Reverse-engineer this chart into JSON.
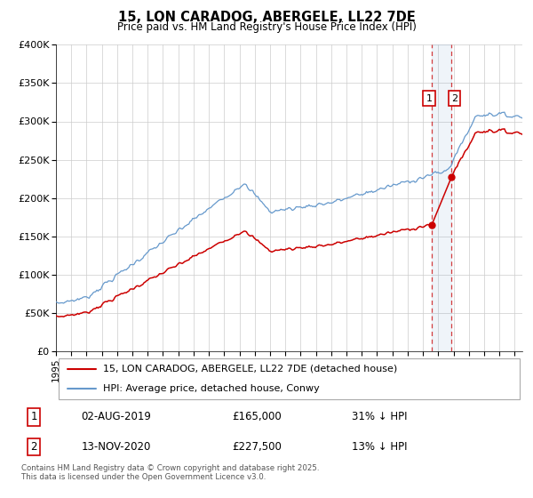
{
  "title": "15, LON CARADOG, ABERGELE, LL22 7DE",
  "subtitle": "Price paid vs. HM Land Registry's House Price Index (HPI)",
  "background_color": "#ffffff",
  "plot_bg_color": "#ffffff",
  "grid_color": "#cccccc",
  "legend1_label": "15, LON CARADOG, ABERGELE, LL22 7DE (detached house)",
  "legend2_label": "HPI: Average price, detached house, Conwy",
  "line1_color": "#cc0000",
  "line2_color": "#6699cc",
  "marker_color": "#cc0000",
  "sale1_date": "02-AUG-2019",
  "sale1_price": 165000,
  "sale1_hpi": "31% ↓ HPI",
  "sale2_date": "13-NOV-2020",
  "sale2_price": 227500,
  "sale2_hpi": "13% ↓ HPI",
  "footnote": "Contains HM Land Registry data © Crown copyright and database right 2025.\nThis data is licensed under the Open Government Licence v3.0.",
  "vline1_x": 2019.58,
  "vline2_x": 2020.87,
  "ylim": [
    0,
    400000
  ],
  "xlim": [
    1995,
    2025.5
  ],
  "yticks": [
    0,
    50000,
    100000,
    150000,
    200000,
    250000,
    300000,
    350000,
    400000
  ],
  "ytick_labels": [
    "£0",
    "£50K",
    "£100K",
    "£150K",
    "£200K",
    "£250K",
    "£300K",
    "£350K",
    "£400K"
  ],
  "xticks": [
    1995,
    1996,
    1997,
    1998,
    1999,
    2000,
    2001,
    2002,
    2003,
    2004,
    2005,
    2006,
    2007,
    2008,
    2009,
    2010,
    2011,
    2012,
    2013,
    2014,
    2015,
    2016,
    2017,
    2018,
    2019,
    2020,
    2021,
    2022,
    2023,
    2024,
    2025
  ],
  "sale1_x": 2019.58,
  "sale1_y": 165000,
  "sale2_x": 2020.87,
  "sale2_y": 227500
}
